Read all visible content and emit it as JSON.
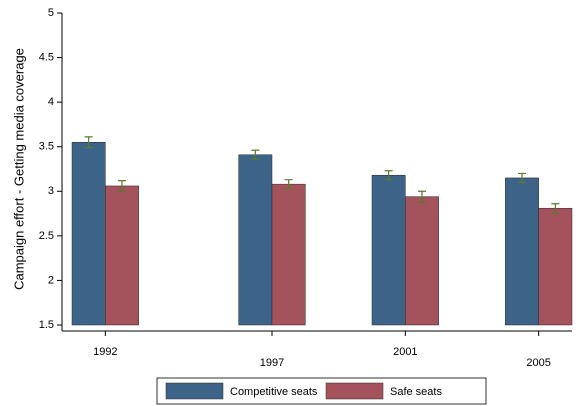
{
  "chart_data": {
    "type": "bar",
    "y_label": "Campaign effort - Getting media coverage",
    "x": [
      1992,
      1997,
      2001,
      2005
    ],
    "series": [
      {
        "name": "Competitive seats",
        "color": "#3e6389",
        "values": [
          3.55,
          3.41,
          3.18,
          3.15
        ],
        "errors": [
          0.06,
          0.05,
          0.05,
          0.05
        ]
      },
      {
        "name": "Safe seats",
        "color": "#a4525b",
        "values": [
          3.06,
          3.08,
          2.94,
          2.81
        ],
        "errors": [
          0.06,
          0.05,
          0.06,
          0.05
        ]
      }
    ],
    "error_color": "#5b7a2a",
    "xlim": [
      1990.7,
      2006
    ],
    "xticks": [
      1992,
      1997,
      2001,
      2005
    ],
    "ylim": [
      1.5,
      5
    ],
    "yticks": [
      1.5,
      2,
      2.5,
      3,
      3.5,
      4,
      4.5,
      5
    ],
    "legend": "bottom"
  }
}
